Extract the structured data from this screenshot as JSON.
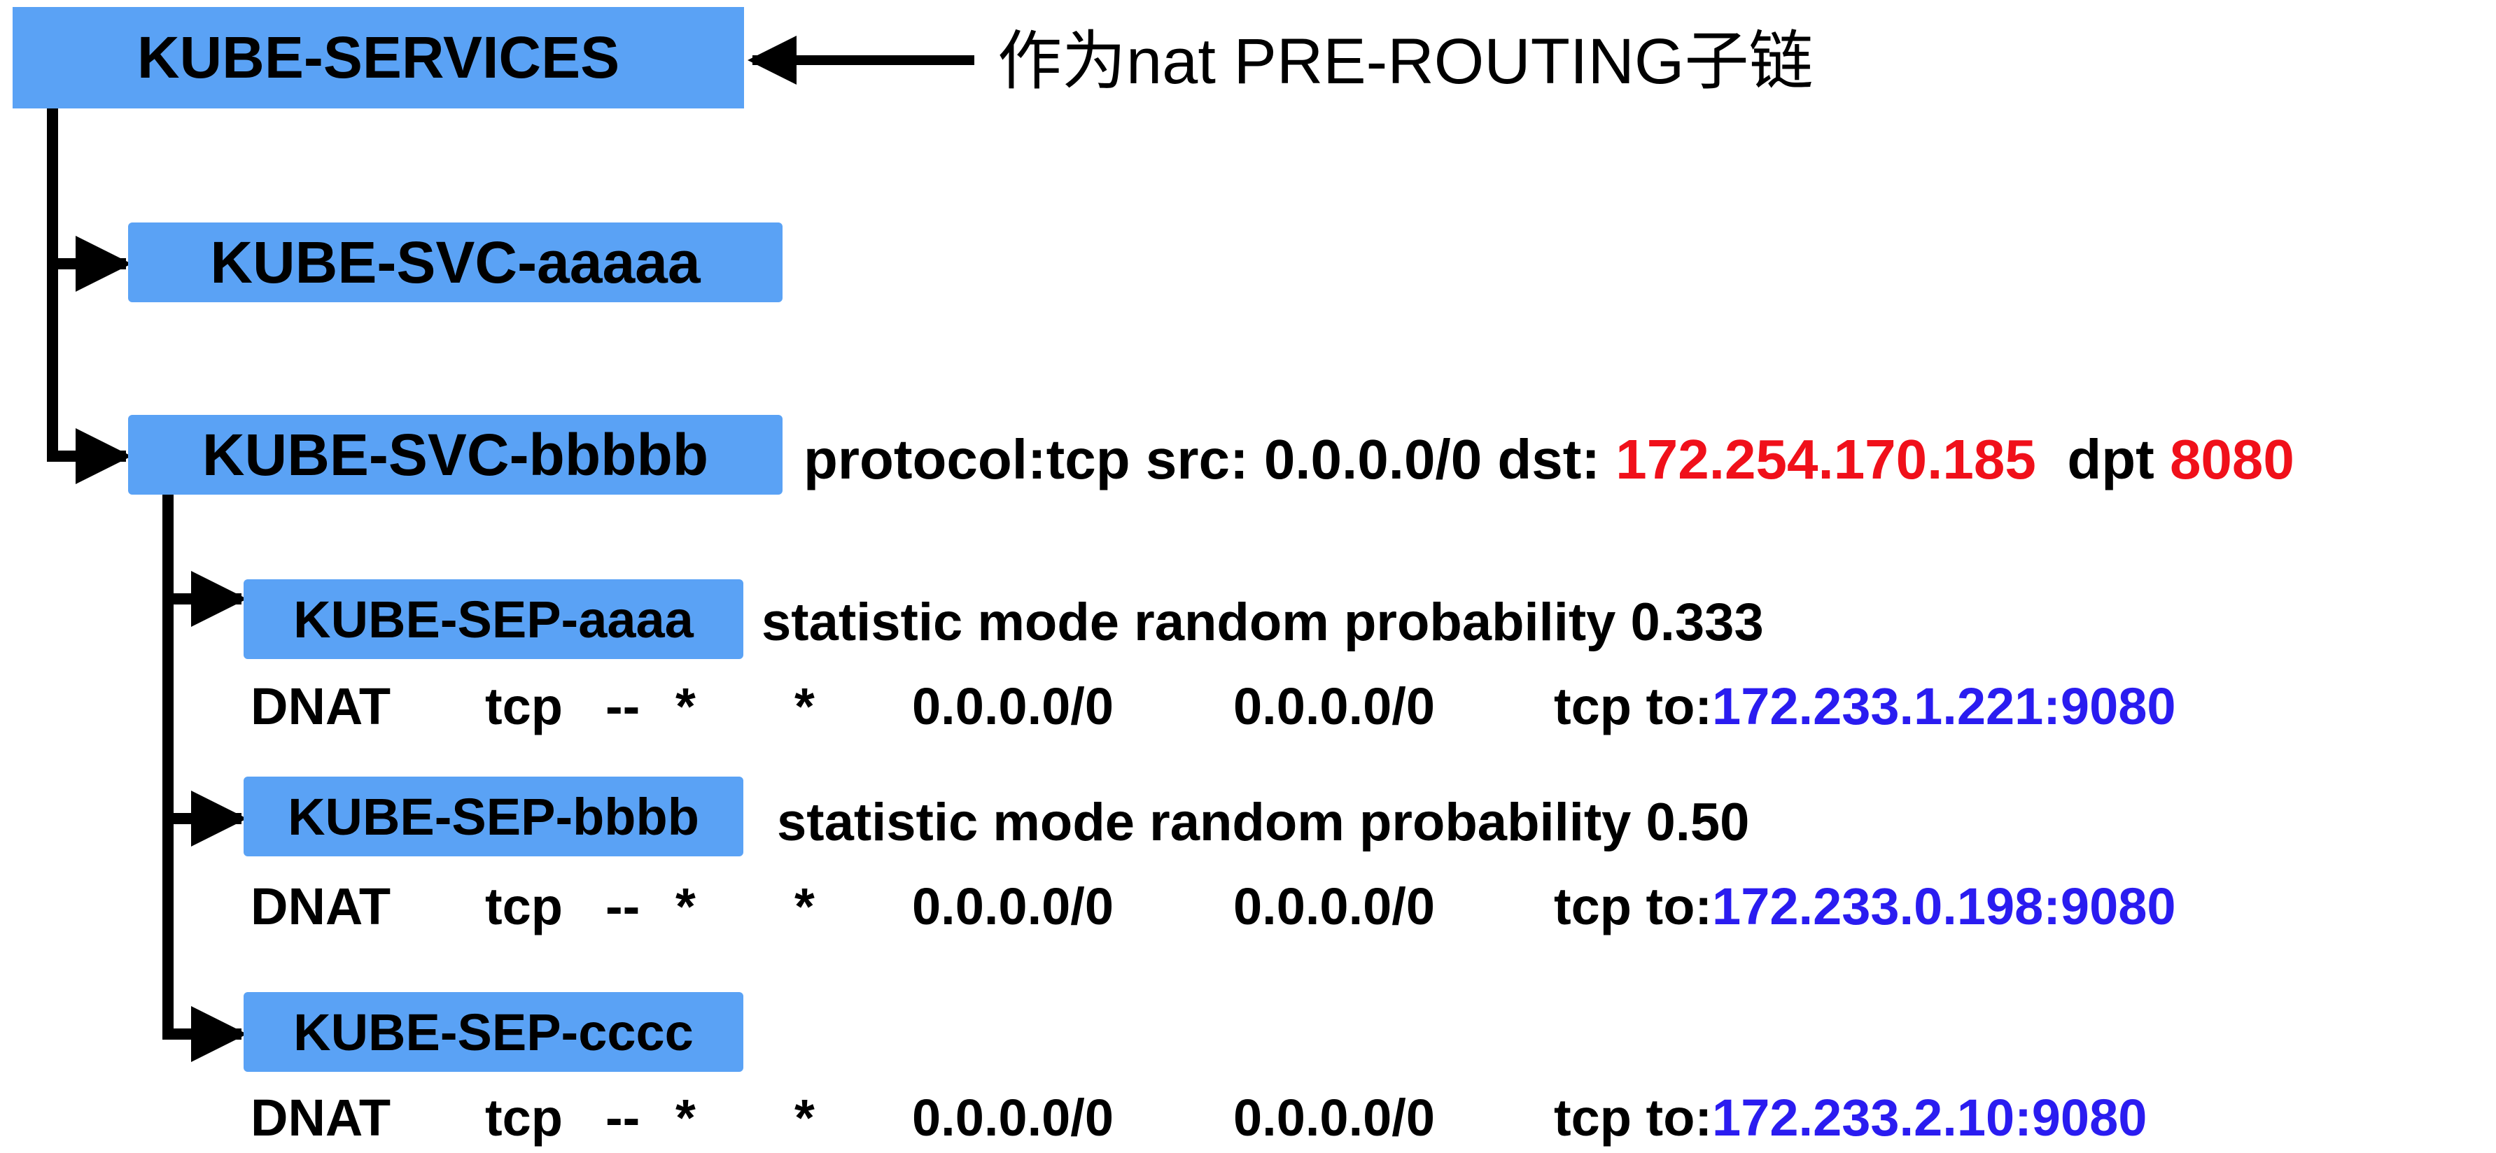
{
  "root": {
    "label": "KUBE-SERVICES",
    "note": "作为nat PRE-ROUTING子链"
  },
  "services": [
    {
      "label": "KUBE-SVC-aaaaa"
    },
    {
      "label": "KUBE-SVC-bbbbb",
      "rule": {
        "prefix": "protocol:tcp src: 0.0.0.0/0  dst: ",
        "dst": "172.254.170.185",
        "dpt_label": "dpt ",
        "dpt": "8080"
      }
    }
  ],
  "endpoints": [
    {
      "label": "KUBE-SEP-aaaa",
      "stat": "statistic mode random probability 0.333",
      "dnat": {
        "target": "DNAT",
        "prot": "tcp",
        "opt": "--",
        "in": "*",
        "out": "*",
        "src": "0.0.0.0/0",
        "dst": "0.0.0.0/0",
        "to_label": "tcp to:",
        "to_addr": "172.233.1.221:9080"
      }
    },
    {
      "label": "KUBE-SEP-bbbb",
      "stat": "statistic mode random probability 0.50",
      "dnat": {
        "target": "DNAT",
        "prot": "tcp",
        "opt": "--",
        "in": "*",
        "out": "*",
        "src": "0.0.0.0/0",
        "dst": "0.0.0.0/0",
        "to_label": "tcp to:",
        "to_addr": "172.233.0.198:9080"
      }
    },
    {
      "label": "KUBE-SEP-cccc",
      "stat": "",
      "dnat": {
        "target": "DNAT",
        "prot": "tcp",
        "opt": "--",
        "in": "*",
        "out": "*",
        "src": "0.0.0.0/0",
        "dst": "0.0.0.0/0",
        "to_label": "tcp to:",
        "to_addr": "172.233.2.10:9080"
      }
    }
  ],
  "colors": {
    "box_fill": "#5aa2f5",
    "ip_blue": "#2a1cf0",
    "highlight_red": "#f0101a"
  }
}
